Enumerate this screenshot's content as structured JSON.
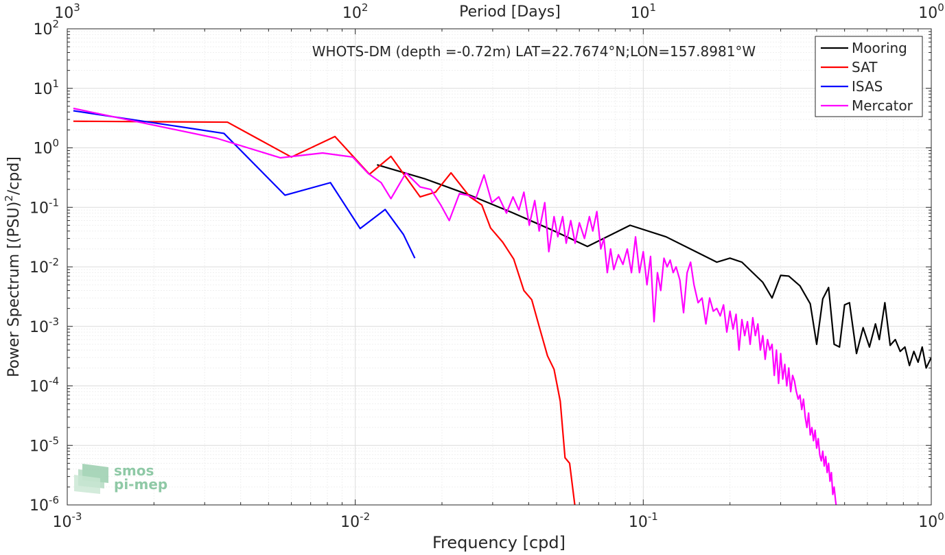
{
  "chart_data": {
    "type": "line",
    "title": "WHOTS-DM (depth =-0.72m) LAT=22.7674°N;LON=157.8981°W",
    "xlabel": "Frequency [cpd]",
    "ylabel_main": "Power Spectrum [(PSU)",
    "ylabel_sup": "2",
    "ylabel_end": "/cpd]",
    "top_axis_label": "Period [Days]",
    "x_scale": "log",
    "y_scale": "log",
    "xlim": [
      0.001,
      1
    ],
    "ylim": [
      1e-06,
      100
    ],
    "grid": true,
    "legend_position": "top-right",
    "x_ticks": [
      {
        "value": 0.001,
        "base": "10",
        "exp": "-3"
      },
      {
        "value": 0.01,
        "base": "10",
        "exp": "-2"
      },
      {
        "value": 0.1,
        "base": "10",
        "exp": "-1"
      },
      {
        "value": 1,
        "base": "10",
        "exp": "0"
      }
    ],
    "top_ticks": [
      {
        "value": 0.001,
        "base": "10",
        "exp": "3"
      },
      {
        "value": 0.01,
        "base": "10",
        "exp": "2"
      },
      {
        "value": 0.1,
        "base": "10",
        "exp": "1"
      },
      {
        "value": 1,
        "base": "10",
        "exp": "0"
      }
    ],
    "y_ticks": [
      {
        "value": 1e-06,
        "base": "10",
        "exp": "-6"
      },
      {
        "value": 1e-05,
        "base": "10",
        "exp": "-5"
      },
      {
        "value": 0.0001,
        "base": "10",
        "exp": "-4"
      },
      {
        "value": 0.001,
        "base": "10",
        "exp": "-3"
      },
      {
        "value": 0.01,
        "base": "10",
        "exp": "-2"
      },
      {
        "value": 0.1,
        "base": "10",
        "exp": "-1"
      },
      {
        "value": 1,
        "base": "10",
        "exp": "0"
      },
      {
        "value": 10,
        "base": "10",
        "exp": "1"
      },
      {
        "value": 100,
        "base": "10",
        "exp": "2"
      }
    ],
    "series": [
      {
        "name": "Mooring",
        "color": "#000000",
        "points": [
          [
            0.0119,
            0.52
          ],
          [
            0.0175,
            0.3
          ],
          [
            0.025,
            0.16
          ],
          [
            0.035,
            0.082
          ],
          [
            0.048,
            0.042
          ],
          [
            0.064,
            0.022
          ],
          [
            0.09,
            0.05
          ],
          [
            0.12,
            0.032
          ],
          [
            0.18,
            0.012
          ],
          [
            0.2,
            0.014
          ],
          [
            0.22,
            0.012
          ],
          [
            0.26,
            0.0055
          ],
          [
            0.28,
            0.003
          ],
          [
            0.3,
            0.0072
          ],
          [
            0.32,
            0.007
          ],
          [
            0.35,
            0.0048
          ],
          [
            0.38,
            0.0024
          ],
          [
            0.4,
            0.0005
          ],
          [
            0.42,
            0.0029
          ],
          [
            0.44,
            0.0045
          ],
          [
            0.46,
            0.0005
          ],
          [
            0.48,
            0.00045
          ],
          [
            0.5,
            0.0023
          ],
          [
            0.52,
            0.0025
          ],
          [
            0.55,
            0.00035
          ],
          [
            0.58,
            0.00095
          ],
          [
            0.61,
            0.00045
          ],
          [
            0.64,
            0.0011
          ],
          [
            0.66,
            0.0006
          ],
          [
            0.69,
            0.0025
          ],
          [
            0.72,
            0.00048
          ],
          [
            0.75,
            0.0006
          ],
          [
            0.78,
            0.00038
          ],
          [
            0.81,
            0.00045
          ],
          [
            0.84,
            0.00022
          ],
          [
            0.87,
            0.00038
          ],
          [
            0.9,
            0.00025
          ],
          [
            0.93,
            0.00045
          ],
          [
            0.96,
            0.0002
          ],
          [
            1.0,
            0.0003
          ]
        ]
      },
      {
        "name": "SAT",
        "color": "#ff0000",
        "points": [
          [
            0.00105,
            2.8
          ],
          [
            0.0036,
            2.7
          ],
          [
            0.006,
            0.7
          ],
          [
            0.0085,
            1.55
          ],
          [
            0.0112,
            0.36
          ],
          [
            0.0133,
            0.72
          ],
          [
            0.0168,
            0.15
          ],
          [
            0.019,
            0.18
          ],
          [
            0.0215,
            0.38
          ],
          [
            0.025,
            0.15
          ],
          [
            0.0275,
            0.11
          ],
          [
            0.0295,
            0.045
          ],
          [
            0.0325,
            0.026
          ],
          [
            0.0355,
            0.0135
          ],
          [
            0.0385,
            0.004
          ],
          [
            0.041,
            0.0028
          ],
          [
            0.0435,
            0.001
          ],
          [
            0.0465,
            0.00032
          ],
          [
            0.049,
            0.00019
          ],
          [
            0.0515,
            5.5e-05
          ],
          [
            0.0535,
            6.2e-06
          ],
          [
            0.0555,
            5e-06
          ],
          [
            0.058,
            9e-07
          ]
        ]
      },
      {
        "name": "ISAS",
        "color": "#0000ff",
        "points": [
          [
            0.00105,
            4.2
          ],
          [
            0.0035,
            1.75
          ],
          [
            0.0057,
            0.16
          ],
          [
            0.0082,
            0.26
          ],
          [
            0.0104,
            0.044
          ],
          [
            0.0127,
            0.092
          ],
          [
            0.0147,
            0.035
          ],
          [
            0.0161,
            0.014
          ]
        ]
      },
      {
        "name": "Mercator",
        "color": "#ff00ff",
        "points": [
          [
            0.00105,
            4.6
          ],
          [
            0.0033,
            1.45
          ],
          [
            0.0055,
            0.68
          ],
          [
            0.0077,
            0.82
          ],
          [
            0.0098,
            0.7
          ],
          [
            0.0111,
            0.37
          ],
          [
            0.0123,
            0.26
          ],
          [
            0.0133,
            0.14
          ],
          [
            0.015,
            0.38
          ],
          [
            0.0168,
            0.22
          ],
          [
            0.0183,
            0.2
          ],
          [
            0.0198,
            0.11
          ],
          [
            0.0212,
            0.06
          ],
          [
            0.023,
            0.17
          ],
          [
            0.0245,
            0.16
          ],
          [
            0.0262,
            0.14
          ],
          [
            0.028,
            0.35
          ],
          [
            0.0298,
            0.12
          ],
          [
            0.0315,
            0.15
          ],
          [
            0.0335,
            0.08
          ],
          [
            0.0353,
            0.15
          ],
          [
            0.037,
            0.09
          ],
          [
            0.0385,
            0.18
          ],
          [
            0.0402,
            0.05
          ],
          [
            0.042,
            0.13
          ],
          [
            0.0435,
            0.04
          ],
          [
            0.0455,
            0.12
          ],
          [
            0.047,
            0.018
          ],
          [
            0.049,
            0.07
          ],
          [
            0.0505,
            0.032
          ],
          [
            0.0525,
            0.07
          ],
          [
            0.054,
            0.025
          ],
          [
            0.056,
            0.06
          ],
          [
            0.058,
            0.025
          ],
          [
            0.06,
            0.055
          ],
          [
            0.0625,
            0.03
          ],
          [
            0.065,
            0.07
          ],
          [
            0.0668,
            0.04
          ],
          [
            0.069,
            0.085
          ],
          [
            0.0712,
            0.02
          ],
          [
            0.073,
            0.03
          ],
          [
            0.075,
            0.008
          ],
          [
            0.077,
            0.02
          ],
          [
            0.079,
            0.009
          ],
          [
            0.082,
            0.016
          ],
          [
            0.085,
            0.011
          ],
          [
            0.088,
            0.02
          ],
          [
            0.091,
            0.008
          ],
          [
            0.094,
            0.032
          ],
          [
            0.097,
            0.008
          ],
          [
            0.1,
            0.018
          ],
          [
            0.103,
            0.005
          ],
          [
            0.106,
            0.015
          ],
          [
            0.109,
            0.0012
          ],
          [
            0.112,
            0.008
          ],
          [
            0.115,
            0.004
          ],
          [
            0.118,
            0.014
          ],
          [
            0.121,
            0.01
          ],
          [
            0.124,
            0.013
          ],
          [
            0.127,
            0.008
          ],
          [
            0.13,
            0.01
          ],
          [
            0.134,
            0.006
          ],
          [
            0.138,
            0.0017
          ],
          [
            0.142,
            0.008
          ],
          [
            0.146,
            0.012
          ],
          [
            0.15,
            0.005
          ],
          [
            0.155,
            0.0025
          ],
          [
            0.16,
            0.003
          ],
          [
            0.165,
            0.0011
          ],
          [
            0.17,
            0.003
          ],
          [
            0.175,
            0.0018
          ],
          [
            0.18,
            0.002
          ],
          [
            0.185,
            0.0015
          ],
          [
            0.19,
            0.0023
          ],
          [
            0.195,
            0.0008
          ],
          [
            0.2,
            0.0018
          ],
          [
            0.205,
            0.0009
          ],
          [
            0.21,
            0.0016
          ],
          [
            0.215,
            0.0004
          ],
          [
            0.22,
            0.0013
          ],
          [
            0.225,
            0.0007
          ],
          [
            0.23,
            0.0012
          ],
          [
            0.235,
            0.0005
          ],
          [
            0.24,
            0.0014
          ],
          [
            0.245,
            0.0007
          ],
          [
            0.25,
            0.0011
          ],
          [
            0.255,
            0.0004
          ],
          [
            0.26,
            0.0007
          ],
          [
            0.265,
            0.00028
          ],
          [
            0.27,
            0.0006
          ],
          [
            0.275,
            0.0004
          ],
          [
            0.28,
            0.0005
          ],
          [
            0.285,
            0.00015
          ],
          [
            0.29,
            0.0004
          ],
          [
            0.295,
            0.00011
          ],
          [
            0.3,
            0.00035
          ],
          [
            0.305,
            0.00013
          ],
          [
            0.31,
            0.00023
          ],
          [
            0.315,
            0.0001
          ],
          [
            0.32,
            0.0002
          ],
          [
            0.325,
            8e-05
          ],
          [
            0.33,
            0.00015
          ],
          [
            0.335,
            0.00012
          ],
          [
            0.34,
            8e-05
          ],
          [
            0.345,
            6e-05
          ],
          [
            0.35,
            7e-05
          ],
          [
            0.355,
            4e-05
          ],
          [
            0.36,
            6e-05
          ],
          [
            0.365,
            3e-05
          ],
          [
            0.37,
            2e-05
          ],
          [
            0.375,
            3.5e-05
          ],
          [
            0.38,
            1.5e-05
          ],
          [
            0.385,
            2e-05
          ],
          [
            0.39,
            1.2e-05
          ],
          [
            0.395,
            1.8e-05
          ],
          [
            0.4,
            9e-06
          ],
          [
            0.405,
            1.3e-05
          ],
          [
            0.41,
            7e-06
          ],
          [
            0.415,
            5.5e-06
          ],
          [
            0.42,
            8e-06
          ],
          [
            0.425,
            4.5e-06
          ],
          [
            0.43,
            6.5e-06
          ],
          [
            0.435,
            3.5e-06
          ],
          [
            0.44,
            5e-06
          ],
          [
            0.445,
            2.5e-06
          ],
          [
            0.45,
            3.5e-06
          ],
          [
            0.455,
            1.5e-06
          ],
          [
            0.46,
            2e-06
          ],
          [
            0.465,
            1.2e-06
          ],
          [
            0.47,
            8e-07
          ]
        ]
      }
    ]
  },
  "watermark": {
    "line1": "smos",
    "line2": "pi-mep"
  }
}
